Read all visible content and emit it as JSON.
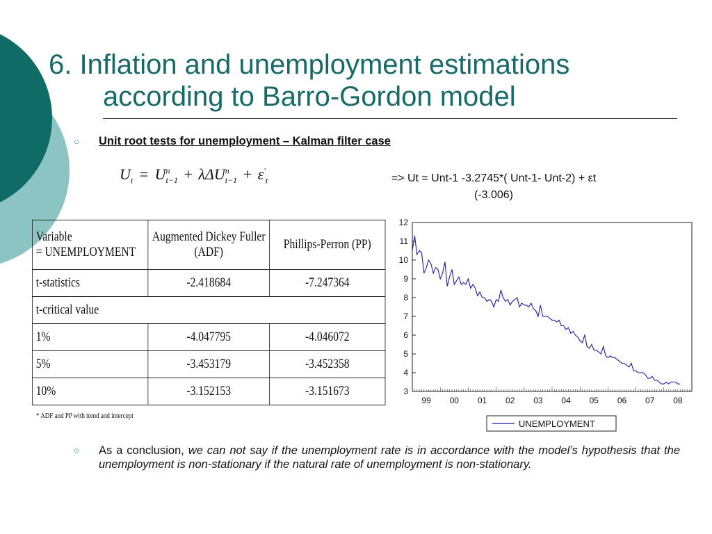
{
  "title": {
    "line1": "6. Inflation and unemployment estimations",
    "line2": "according to Barro-Gordon model"
  },
  "section": {
    "heading": "Unit root tests for unemployment – Kalman filter case",
    "formula": {
      "u": "U",
      "t": "t",
      "n": "n",
      "tm1": "t−1",
      "eq": "=",
      "plus": "+",
      "lambda_delta": "λΔ",
      "eps": "ε",
      "prime": "'"
    },
    "equation_text": "=> Ut = Unt-1 -3.2745*( Unt-1- Unt-2) + εt",
    "t_stat_text": "(-3.006)"
  },
  "table": {
    "headers": [
      "Variable\n= UNEMPLOYMENT",
      "Augmented Dickey Fuller\n(ADF)",
      "Phillips-Perron (PP)"
    ],
    "rows": [
      [
        "t-statistics",
        "-2.418684",
        "-7.247364"
      ],
      [
        "t-critical value",
        "",
        ""
      ],
      [
        "1%",
        "-4.047795",
        "-4.046072"
      ],
      [
        "5%",
        "-3.453179",
        "-3.452358"
      ],
      [
        "10%",
        "-3.152153",
        "-3.151673"
      ]
    ],
    "footnote": "* ADF and PP with trend and intercept"
  },
  "conclusion": {
    "prefix": "As a conclusion,",
    "italic": "we can not say if the unemployment rate is in accordance with the model’s hypothesis that the unemployment is non-stationary if the natural rate of unemployment is non-stationary."
  },
  "colors": {
    "title": "#176a68",
    "deco_dark": "#0f6b66",
    "deco_light": "#8cc4c4",
    "series": "#1a1aa8"
  },
  "chart_data": {
    "type": "line",
    "title": "",
    "xlabel": "",
    "ylabel": "",
    "x_ticks": [
      "99",
      "00",
      "01",
      "02",
      "03",
      "04",
      "05",
      "06",
      "07",
      "08"
    ],
    "y_ticks": [
      12,
      11,
      10,
      9,
      8,
      7,
      6,
      5,
      4,
      3
    ],
    "xlim": [
      1999,
      2009
    ],
    "ylim": [
      3,
      12
    ],
    "grid": false,
    "legend": "bottom",
    "series": [
      {
        "name": "UNEMPLOYMENT",
        "x": [
          1999.0,
          1999.083,
          1999.167,
          1999.25,
          1999.333,
          1999.417,
          1999.5,
          1999.583,
          1999.667,
          1999.75,
          1999.833,
          1999.917,
          2000.0,
          2000.083,
          2000.167,
          2000.25,
          2000.333,
          2000.417,
          2000.5,
          2000.583,
          2000.667,
          2000.75,
          2000.833,
          2000.917,
          2001.0,
          2001.083,
          2001.167,
          2001.25,
          2001.333,
          2001.417,
          2001.5,
          2001.583,
          2001.667,
          2001.75,
          2001.833,
          2001.917,
          2002.0,
          2002.083,
          2002.167,
          2002.25,
          2002.333,
          2002.417,
          2002.5,
          2002.583,
          2002.667,
          2002.75,
          2002.833,
          2002.917,
          2003.0,
          2003.083,
          2003.167,
          2003.25,
          2003.333,
          2003.417,
          2003.5,
          2003.583,
          2003.667,
          2003.75,
          2003.833,
          2003.917,
          2004.0,
          2004.083,
          2004.167,
          2004.25,
          2004.333,
          2004.417,
          2004.5,
          2004.583,
          2004.667,
          2004.75,
          2004.833,
          2004.917,
          2005.0,
          2005.083,
          2005.167,
          2005.25,
          2005.333,
          2005.417,
          2005.5,
          2005.583,
          2005.667,
          2005.75,
          2005.833,
          2005.917,
          2006.0,
          2006.083,
          2006.167,
          2006.25,
          2006.333,
          2006.417,
          2006.5,
          2006.583,
          2006.667,
          2006.75,
          2006.833,
          2006.917,
          2007.0,
          2007.083,
          2007.167,
          2007.25,
          2007.333,
          2007.417,
          2007.5,
          2007.583,
          2007.667,
          2007.75,
          2007.833,
          2007.917,
          2008.0,
          2008.083,
          2008.167,
          2008.25,
          2008.333,
          2008.417,
          2008.5,
          2008.583
        ],
        "values": [
          10.5,
          11.3,
          10.3,
          10.5,
          10.4,
          9.3,
          9.6,
          10.0,
          9.8,
          9.3,
          9.6,
          9.5,
          9.0,
          9.3,
          9.9,
          8.6,
          9.1,
          9.5,
          8.7,
          8.9,
          9.1,
          8.7,
          8.8,
          8.7,
          9.0,
          8.5,
          8.7,
          8.5,
          8.1,
          8.3,
          8.0,
          8.0,
          7.8,
          7.9,
          7.8,
          7.5,
          7.9,
          7.8,
          8.4,
          8.0,
          7.8,
          7.9,
          7.6,
          7.8,
          7.9,
          8.0,
          7.5,
          7.7,
          7.6,
          7.6,
          7.5,
          7.7,
          7.4,
          7.3,
          7.0,
          7.6,
          7.0,
          7.0,
          7.0,
          6.9,
          6.8,
          6.8,
          6.7,
          6.8,
          6.5,
          6.5,
          6.3,
          6.4,
          6.1,
          6.2,
          6.0,
          5.9,
          5.7,
          5.6,
          6.0,
          5.4,
          5.3,
          5.5,
          5.2,
          5.2,
          5.1,
          5.0,
          5.4,
          4.9,
          4.8,
          4.9,
          4.8,
          4.8,
          4.7,
          4.6,
          4.5,
          4.5,
          4.4,
          4.3,
          4.5,
          4.1,
          4.1,
          4.0,
          4.0,
          4.0,
          3.9,
          3.7,
          3.7,
          3.8,
          3.6,
          3.6,
          3.5,
          3.4,
          3.4,
          3.5,
          3.4,
          3.5,
          3.5,
          3.5,
          3.4,
          3.4
        ]
      }
    ]
  }
}
